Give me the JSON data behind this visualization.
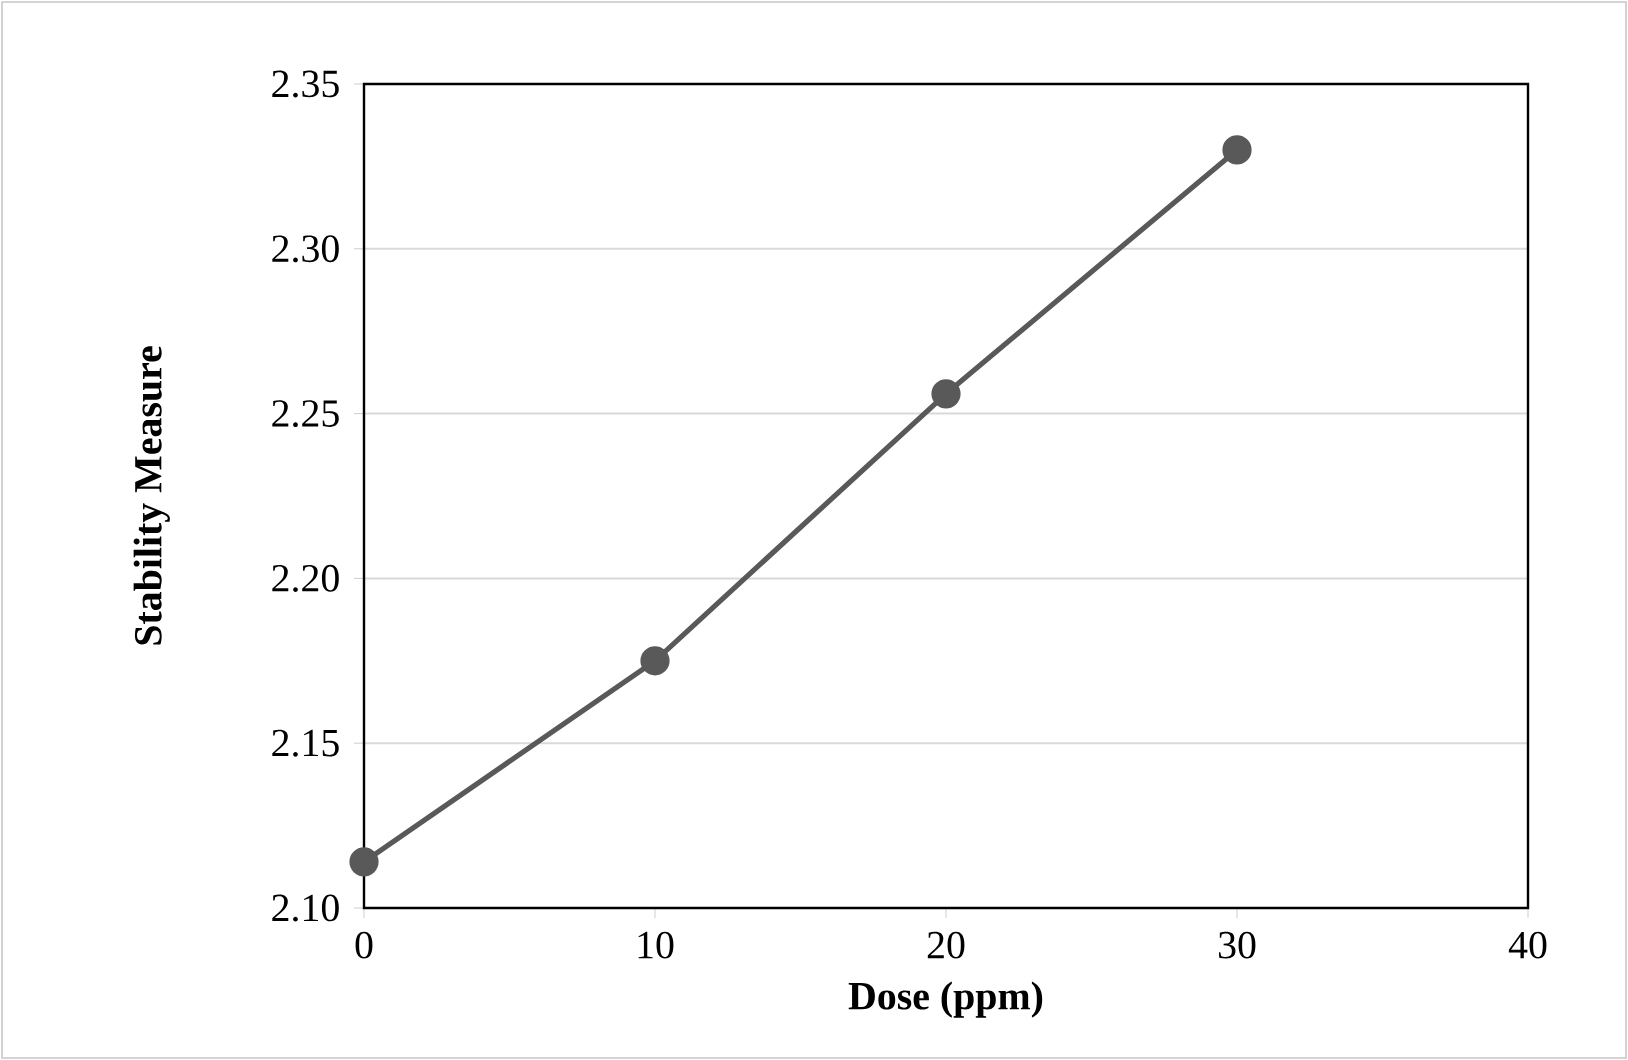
{
  "chart_data": {
    "type": "line",
    "xlabel": "Dose (ppm)",
    "ylabel": "Stability Measure",
    "x": [
      0,
      10,
      20,
      30
    ],
    "series": [
      {
        "color": "#595959",
        "values": [
          2.114,
          2.175,
          2.256,
          2.33
        ]
      }
    ],
    "xlim": [
      0,
      40
    ],
    "xticks": [
      0,
      10,
      20,
      30,
      40
    ],
    "ylim": [
      2.1,
      2.35
    ],
    "yticks": [
      {
        "value": 2.1,
        "label": "2.10"
      },
      {
        "value": 2.15,
        "label": "2.15"
      },
      {
        "value": 2.2,
        "label": "2.20"
      },
      {
        "value": 2.25,
        "label": "2.25"
      },
      {
        "value": 2.3,
        "label": "2.30"
      },
      {
        "value": 2.35,
        "label": "2.35"
      }
    ],
    "grid": "y",
    "marker": "circle",
    "line_style": "solid"
  }
}
